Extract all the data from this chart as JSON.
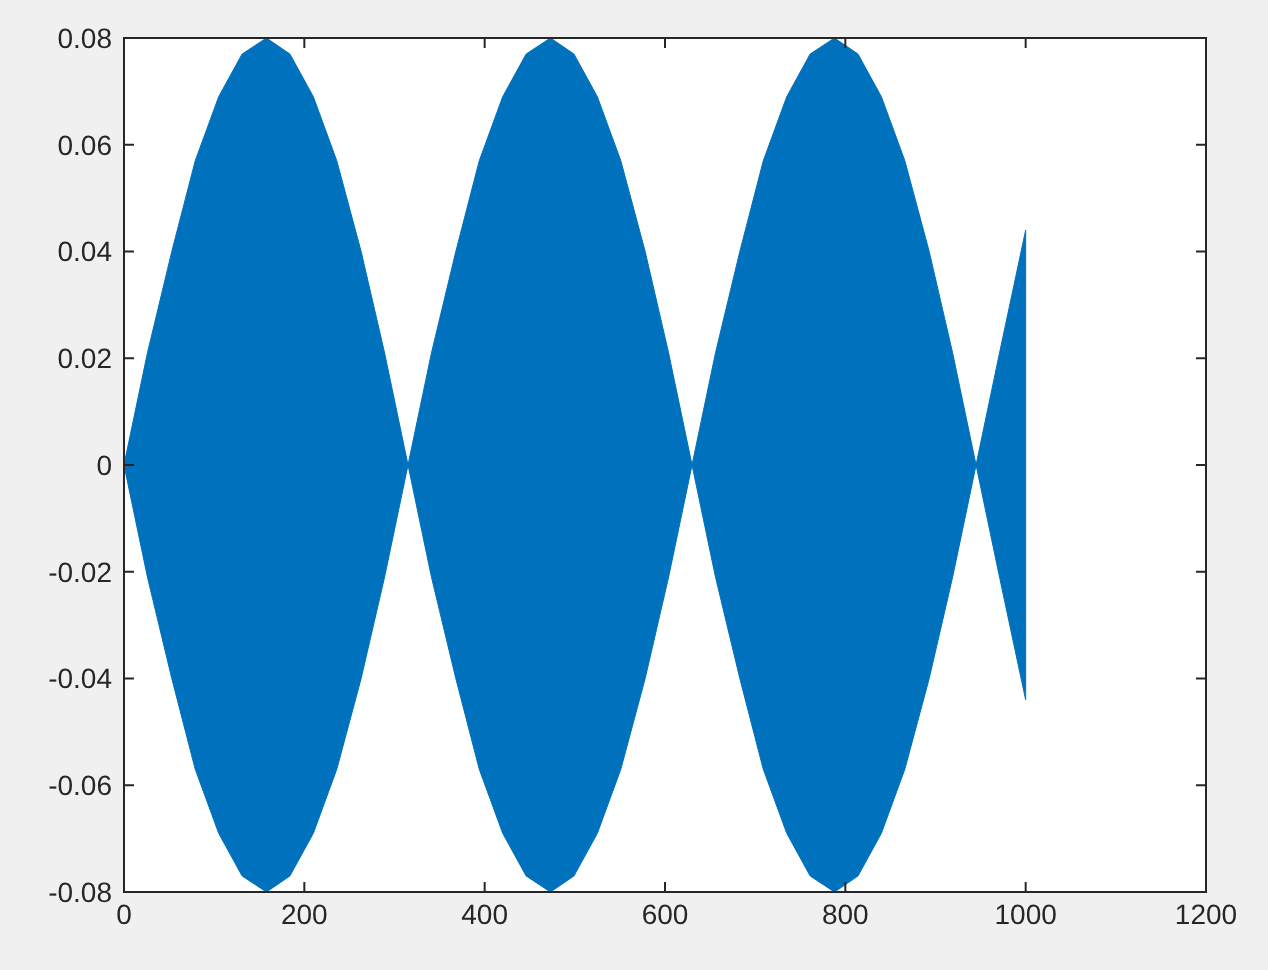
{
  "chart_data": {
    "type": "area",
    "x": [
      0,
      26,
      53,
      79,
      105,
      131,
      158,
      184,
      210,
      236,
      263,
      289,
      315,
      341,
      368,
      394,
      420,
      446,
      473,
      499,
      525,
      551,
      578,
      604,
      630,
      656,
      683,
      709,
      735,
      761,
      788,
      814,
      840,
      866,
      893,
      919,
      945,
      971,
      1000
    ],
    "series": [
      {
        "color": "#0072bd",
        "values": [
          0,
          0.021,
          0.04,
          0.057,
          0.069,
          0.077,
          0.08,
          0.077,
          0.069,
          0.057,
          0.04,
          0.021,
          0,
          0.021,
          0.04,
          0.057,
          0.069,
          0.077,
          0.08,
          0.077,
          0.069,
          0.057,
          0.04,
          0.021,
          0,
          0.021,
          0.04,
          0.057,
          0.069,
          0.077,
          0.08,
          0.077,
          0.069,
          0.057,
          0.04,
          0.021,
          0,
          0.021,
          0.044
        ]
      },
      {
        "color": "#0072bd",
        "values": [
          0,
          -0.021,
          -0.04,
          -0.057,
          -0.069,
          -0.077,
          -0.08,
          -0.077,
          -0.069,
          -0.057,
          -0.04,
          -0.021,
          0,
          -0.021,
          -0.04,
          -0.057,
          -0.069,
          -0.077,
          -0.08,
          -0.077,
          -0.069,
          -0.057,
          -0.04,
          -0.021,
          0,
          -0.021,
          -0.04,
          -0.057,
          -0.069,
          -0.077,
          -0.08,
          -0.077,
          -0.069,
          -0.057,
          -0.04,
          -0.021,
          0,
          -0.021,
          -0.044
        ]
      }
    ],
    "xlim": [
      0,
      1200
    ],
    "xticks": [
      0,
      200,
      400,
      600,
      800,
      1000,
      1200
    ],
    "ylim": [
      -0.08,
      0.08
    ],
    "yticks": [
      -0.08,
      -0.06,
      -0.04,
      -0.02,
      0,
      0.02,
      0.04,
      0.06,
      0.08
    ],
    "grid": false
  }
}
